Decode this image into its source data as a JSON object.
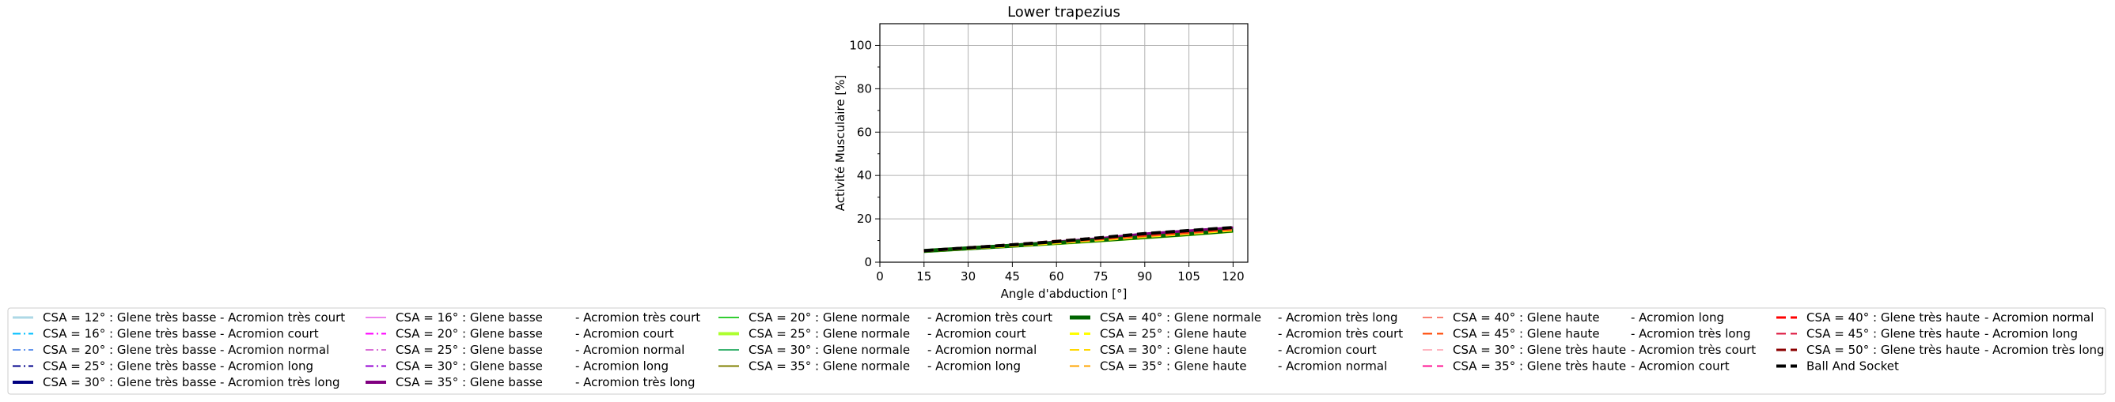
{
  "chart_data": {
    "type": "line",
    "title": "Lower trapezius",
    "xlabel": "Angle d'abduction [°]",
    "ylabel": "Activité Musculaire [%]",
    "xlim": [
      0,
      125
    ],
    "ylim": [
      0,
      110
    ],
    "xticks": [
      0,
      15,
      30,
      45,
      60,
      75,
      90,
      105,
      120
    ],
    "yticks": [
      0,
      20,
      40,
      60,
      80,
      100
    ],
    "grid": true,
    "legend_position": "bottom",
    "x": [
      15,
      30,
      45,
      60,
      75,
      90,
      105,
      120
    ],
    "series": [
      {
        "name": "CSA = 12° : Glene très basse",
        "color": "#add8e6",
        "dash": "solid",
        "width": 3,
        "values": [
          5.0,
          6.2,
          7.4,
          8.7,
          10.2,
          12.4,
          13.8,
          15.2
        ]
      },
      {
        "name": "CSA = 16° : Glene très basse",
        "color": "#00bfff",
        "dash": "dashdot",
        "width": 2,
        "values": [
          5.0,
          6.2,
          7.4,
          8.8,
          10.3,
          12.5,
          13.9,
          15.3
        ]
      },
      {
        "name": "CSA = 20° : Glene très basse",
        "color": "#6495ed",
        "dash": "dashdot",
        "width": 2,
        "values": [
          5.1,
          6.3,
          7.5,
          8.9,
          10.4,
          12.6,
          14.0,
          15.4
        ]
      },
      {
        "name": "CSA = 25° : Glene très basse",
        "color": "#00008b",
        "dash": "dashdot",
        "width": 2,
        "values": [
          5.1,
          6.3,
          7.6,
          9.0,
          10.5,
          12.7,
          14.1,
          15.5
        ]
      },
      {
        "name": "CSA = 30° : Glene très basse",
        "color": "#000080",
        "dash": "solid",
        "width": 4,
        "values": [
          5.2,
          6.4,
          7.7,
          9.1,
          10.6,
          12.8,
          14.2,
          15.6
        ]
      },
      {
        "name": "CSA = 16° : Glene basse",
        "color": "#ee82ee",
        "dash": "solid",
        "width": 2,
        "values": [
          5.0,
          6.2,
          7.5,
          8.9,
          10.5,
          12.6,
          14.0,
          15.4
        ]
      },
      {
        "name": "CSA = 20° : Glene basse",
        "color": "#ff00ff",
        "dash": "dashdot",
        "width": 2,
        "values": [
          5.1,
          6.3,
          7.6,
          9.0,
          10.6,
          12.7,
          14.1,
          15.5
        ]
      },
      {
        "name": "CSA = 25° : Glene basse",
        "color": "#da70d6",
        "dash": "dashdot",
        "width": 2,
        "values": [
          5.1,
          6.3,
          7.6,
          9.1,
          10.7,
          12.8,
          14.2,
          15.6
        ]
      },
      {
        "name": "CSA = 30° : Glene basse",
        "color": "#9400d3",
        "dash": "dashdot",
        "width": 2,
        "values": [
          5.2,
          6.4,
          7.7,
          9.2,
          10.8,
          12.9,
          14.3,
          15.7
        ]
      },
      {
        "name": "CSA = 35° : Glene basse",
        "color": "#800080",
        "dash": "solid",
        "width": 4,
        "values": [
          5.2,
          6.5,
          7.8,
          9.3,
          10.9,
          13.0,
          14.4,
          15.8
        ]
      },
      {
        "name": "CSA = 20° : Glene normale",
        "color": "#32cd32",
        "dash": "solid",
        "width": 2,
        "values": [
          5.0,
          6.1,
          7.3,
          8.5,
          9.8,
          11.2,
          12.6,
          14.2
        ]
      },
      {
        "name": "CSA = 25° : Glene normale",
        "color": "#adff2f",
        "dash": "solid",
        "width": 4,
        "values": [
          5.0,
          6.2,
          7.4,
          8.6,
          9.9,
          11.3,
          12.7,
          14.3
        ]
      },
      {
        "name": "CSA = 30° : Glene normale",
        "color": "#3cb371",
        "dash": "solid",
        "width": 2,
        "values": [
          5.1,
          6.2,
          7.4,
          8.7,
          10.0,
          11.4,
          12.8,
          14.4
        ]
      },
      {
        "name": "CSA = 35° : Glene normale",
        "color": "#808000",
        "dash": "solid",
        "width": 2,
        "values": [
          5.1,
          6.3,
          7.5,
          8.8,
          10.1,
          11.5,
          12.9,
          14.5
        ]
      },
      {
        "name": "CSA = 40° : Glene normale",
        "color": "#006400",
        "dash": "solid",
        "width": 5,
        "values": [
          5.2,
          6.4,
          7.6,
          8.9,
          10.2,
          11.6,
          13.0,
          14.6
        ]
      },
      {
        "name": "CSA = 25° : Glene haute",
        "color": "#ffff00",
        "dash": "dashed",
        "width": 3,
        "values": [
          5.1,
          6.3,
          7.5,
          8.8,
          10.2,
          11.7,
          13.1,
          14.7
        ]
      },
      {
        "name": "CSA = 30° : Glene haute",
        "color": "#ffd700",
        "dash": "dashed",
        "width": 2,
        "values": [
          5.1,
          6.3,
          7.6,
          8.9,
          10.3,
          11.8,
          13.2,
          14.8
        ]
      },
      {
        "name": "CSA = 35° : Glene haute",
        "color": "#ffa500",
        "dash": "dashed",
        "width": 2,
        "values": [
          5.2,
          6.4,
          7.7,
          9.0,
          10.4,
          11.9,
          13.3,
          14.9
        ]
      },
      {
        "name": "CSA = 40° : Glene haute",
        "color": "#fa8072",
        "dash": "dashed",
        "width": 2,
        "values": [
          5.2,
          6.4,
          7.7,
          9.1,
          10.5,
          12.0,
          13.4,
          15.0
        ]
      },
      {
        "name": "CSA = 45° : Glene haute",
        "color": "#ff4500",
        "dash": "dashed",
        "width": 2,
        "values": [
          5.3,
          6.5,
          7.8,
          9.2,
          10.6,
          12.1,
          13.5,
          15.1
        ]
      },
      {
        "name": "CSA = 30° : Glene très haute",
        "color": "#ffb6c1",
        "dash": "dashed",
        "width": 2,
        "values": [
          5.2,
          6.5,
          7.9,
          9.4,
          11.0,
          12.6,
          14.0,
          15.5
        ]
      },
      {
        "name": "CSA = 35° : Glene très haute",
        "color": "#ff1493",
        "dash": "dashed",
        "width": 2,
        "values": [
          5.3,
          6.6,
          8.0,
          9.5,
          11.1,
          12.7,
          14.1,
          15.6
        ]
      },
      {
        "name": "CSA = 40° : Glene très haute",
        "color": "#ff0000",
        "dash": "dashed",
        "width": 3,
        "values": [
          5.3,
          6.6,
          8.0,
          9.6,
          11.2,
          12.8,
          14.2,
          15.7
        ]
      },
      {
        "name": "CSA = 45° : Glene très haute",
        "color": "#dc143c",
        "dash": "dashed",
        "width": 2,
        "values": [
          5.4,
          6.7,
          8.1,
          9.7,
          11.3,
          12.9,
          14.3,
          15.8
        ]
      },
      {
        "name": "CSA = 50° : Glene très haute",
        "color": "#8b0000",
        "dash": "dashed",
        "width": 3,
        "values": [
          5.4,
          6.8,
          8.2,
          9.8,
          11.4,
          13.0,
          14.4,
          15.9
        ]
      },
      {
        "name": "Ball And Socket",
        "color": "#000000",
        "dash": "dashed",
        "width": 4,
        "values": [
          5.3,
          6.6,
          8.0,
          9.5,
          11.3,
          13.2,
          14.6,
          16.0
        ]
      }
    ],
    "legend": {
      "columns": [
        [
          {
            "label": "CSA = 12° : Glene très basse",
            "color": "#add8e6",
            "dash": "solid",
            "width": 3
          },
          {
            "label": "CSA = 16° : Glene très basse",
            "color": "#00bfff",
            "dash": "dashdot",
            "width": 2
          },
          {
            "label": "CSA = 20° : Glene très basse",
            "color": "#6495ed",
            "dash": "dashdot",
            "width": 2
          },
          {
            "label": "CSA = 25° : Glene très basse",
            "color": "#00008b",
            "dash": "dashdot",
            "width": 2
          },
          {
            "label": "CSA = 30° : Glene très basse",
            "color": "#000080",
            "dash": "solid",
            "width": 4
          }
        ],
        [
          {
            "label": "-  Acromion très court"
          },
          {
            "label": "-  Acromion court"
          },
          {
            "label": "-  Acromion normal"
          },
          {
            "label": "-  Acromion long"
          },
          {
            "label": "-  Acromion très long"
          }
        ],
        [
          {
            "label": "CSA = 16° : Glene basse",
            "color": "#ee82ee",
            "dash": "solid",
            "width": 2
          },
          {
            "label": "CSA = 20° : Glene basse",
            "color": "#ff00ff",
            "dash": "dashdot",
            "width": 2
          },
          {
            "label": "CSA = 25° : Glene basse",
            "color": "#da70d6",
            "dash": "dashdot",
            "width": 2
          },
          {
            "label": "CSA = 30° : Glene basse",
            "color": "#9400d3",
            "dash": "dashdot",
            "width": 2
          },
          {
            "label": "CSA = 35° : Glene basse",
            "color": "#800080",
            "dash": "solid",
            "width": 4
          }
        ],
        [
          {
            "label": "-  Acromion très court"
          },
          {
            "label": "-  Acromion court"
          },
          {
            "label": "-  Acromion normal"
          },
          {
            "label": "-  Acromion long"
          },
          {
            "label": "-  Acromion très long"
          }
        ],
        [
          {
            "label": "CSA = 20° : Glene normale",
            "color": "#32cd32",
            "dash": "solid",
            "width": 2
          },
          {
            "label": "CSA = 25° : Glene normale",
            "color": "#adff2f",
            "dash": "solid",
            "width": 4
          },
          {
            "label": "CSA = 30° : Glene normale",
            "color": "#3cb371",
            "dash": "solid",
            "width": 2
          },
          {
            "label": "CSA = 35° : Glene normale",
            "color": "#808000",
            "dash": "solid",
            "width": 2
          }
        ],
        [
          {
            "label": "-  Acromion très court"
          },
          {
            "label": "-  Acromion court"
          },
          {
            "label": "-  Acromion normal"
          },
          {
            "label": "-  Acromion long"
          }
        ],
        [
          {
            "label": "CSA = 40° : Glene normale",
            "color": "#006400",
            "dash": "solid",
            "width": 5
          },
          {
            "label": "CSA = 25° : Glene haute",
            "color": "#ffff00",
            "dash": "dashed",
            "width": 3
          },
          {
            "label": "CSA = 30° : Glene haute",
            "color": "#ffd700",
            "dash": "dashed",
            "width": 2
          },
          {
            "label": "CSA = 35° : Glene haute",
            "color": "#ffa500",
            "dash": "dashed",
            "width": 2
          }
        ],
        [
          {
            "label": "-  Acromion très long"
          },
          {
            "label": "-  Acromion très court"
          },
          {
            "label": "-  Acromion court"
          },
          {
            "label": "-  Acromion normal"
          }
        ],
        [
          {
            "label": "CSA = 40° : Glene haute",
            "color": "#fa8072",
            "dash": "dashed",
            "width": 2
          },
          {
            "label": "CSA = 45° : Glene haute",
            "color": "#ff4500",
            "dash": "dashed",
            "width": 2
          },
          {
            "label": "CSA = 30° : Glene très haute",
            "color": "#ffb6c1",
            "dash": "dashed",
            "width": 2
          },
          {
            "label": "CSA = 35° : Glene très haute",
            "color": "#ff1493",
            "dash": "dashed",
            "width": 2
          }
        ],
        [
          {
            "label": "-  Acromion long"
          },
          {
            "label": "-  Acromion très long"
          },
          {
            "label": "-  Acromion très court"
          },
          {
            "label": "-  Acromion court"
          }
        ],
        [
          {
            "label": "CSA = 40° : Glene très haute",
            "color": "#ff0000",
            "dash": "dashed",
            "width": 3
          },
          {
            "label": "CSA = 45° : Glene très haute",
            "color": "#dc143c",
            "dash": "dashed",
            "width": 2
          },
          {
            "label": "CSA = 50° : Glene très haute",
            "color": "#8b0000",
            "dash": "dashed",
            "width": 3
          },
          {
            "label": "Ball And Socket",
            "color": "#000000",
            "dash": "dashed",
            "width": 4
          }
        ],
        [
          {
            "label": "-  Acromion normal"
          },
          {
            "label": "-  Acromion long"
          },
          {
            "label": "-  Acromion très long"
          }
        ]
      ]
    }
  }
}
